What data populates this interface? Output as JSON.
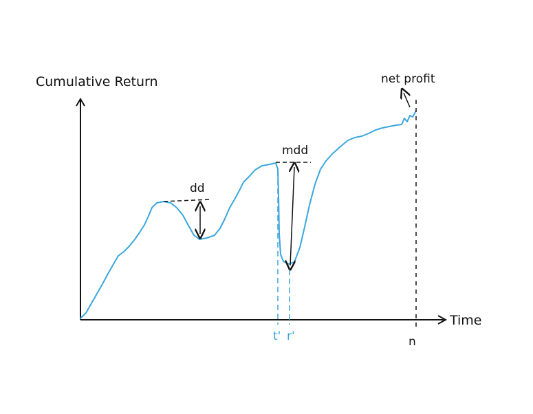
{
  "diagram": {
    "y_axis_label": "Cumulative Return",
    "x_axis_label": "Time",
    "annotations": {
      "net_profit": "net profit",
      "dd": "dd",
      "mdd": "mdd"
    },
    "x_marks": {
      "t_prime": "t'",
      "r_prime": "r'",
      "n": "n"
    },
    "colors": {
      "curve": "#3aa6dc",
      "ink": "#111111"
    }
  }
}
